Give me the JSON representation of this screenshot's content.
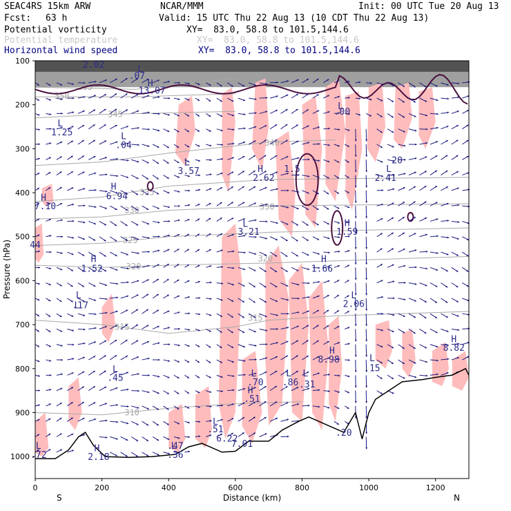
{
  "header": {
    "model": "SEAC4RS 15km ARW",
    "org": "NCAR/MMM",
    "init": "Init: 00 UTC Tue 20 Aug 13",
    "fcst_label": "Fcst:",
    "fcst_value": "63 h",
    "valid": "Valid: 15 UTC Thu 22 Aug 13 (10 CDT Thu 22 Aug 13)"
  },
  "fields": [
    {
      "name": "Potential vorticity",
      "xy": "XY=  83.0, 58.8 to 101.5,144.6",
      "color": "#000000"
    },
    {
      "name": "Potential temperature",
      "xy": "XY=  83.0, 58.8 to 101.5,144.6",
      "color": "#c8c8c8"
    },
    {
      "name": "Horizontal wind speed",
      "xy": "XY=  83.0, 58.8 to 101.5,144.6",
      "color": "#000080"
    }
  ],
  "colors": {
    "theta": "#a8a8a8",
    "pv_fill": "#ffbcbc",
    "pv_contour": "#4a0f3f",
    "wind": "#1a1a80",
    "label": "#2a2a8a",
    "terrain": "#000000",
    "strat_fill": "#505050"
  },
  "chart_data": {
    "type": "cross-section",
    "xlabel": "Distance (km)",
    "ylabel": "Pressure (hPa)",
    "xlim": [
      0,
      1300
    ],
    "ylim": [
      1050,
      100
    ],
    "x_ticks": [
      "0",
      "200",
      "400",
      "600",
      "800",
      "1000",
      "1200"
    ],
    "y_ticks": [
      "100",
      "200",
      "300",
      "400",
      "500",
      "600",
      "700",
      "800",
      "900",
      "1000"
    ],
    "end_labels": {
      "left": "S",
      "right": "N"
    },
    "theta_contours": [
      {
        "label": "355",
        "values": [
          [
            0,
            160
          ],
          [
            300,
            165
          ],
          [
            600,
            140
          ]
        ]
      },
      {
        "label": "350",
        "values": [
          [
            0,
            182
          ],
          [
            300,
            182
          ],
          [
            600,
            175
          ]
        ]
      },
      {
        "label": "345",
        "values": [
          [
            0,
            230
          ],
          [
            200,
            222
          ],
          [
            600,
            215
          ]
        ]
      },
      {
        "label": "340",
        "values": [
          [
            0,
            338
          ],
          [
            200,
            330
          ],
          [
            400,
            310
          ],
          [
            700,
            285
          ],
          [
            900,
            280
          ]
        ]
      },
      {
        "label": "335",
        "values": [
          [
            0,
            420
          ],
          [
            200,
            410
          ],
          [
            400,
            385
          ],
          [
            700,
            370
          ],
          [
            1300,
            365
          ]
        ]
      },
      {
        "label": "330",
        "values": [
          [
            0,
            460
          ],
          [
            200,
            455
          ],
          [
            400,
            440
          ],
          [
            700,
            430
          ],
          [
            1300,
            425
          ]
        ]
      },
      {
        "label": "325",
        "values": [
          [
            0,
            520
          ],
          [
            200,
            515
          ],
          [
            400,
            500
          ],
          [
            700,
            490
          ],
          [
            1300,
            480
          ]
        ]
      },
      {
        "label": "320",
        "values": [
          [
            0,
            565
          ],
          [
            200,
            570
          ],
          [
            400,
            565
          ],
          [
            700,
            560
          ],
          [
            1300,
            545
          ]
        ]
      },
      {
        "label": "315",
        "values": [
          [
            0,
            690
          ],
          [
            200,
            700
          ],
          [
            400,
            720
          ],
          [
            600,
            705
          ],
          [
            700,
            690
          ],
          [
            900,
            680
          ],
          [
            1300,
            670
          ]
        ]
      },
      {
        "label": "310",
        "values": [
          [
            0,
            900
          ],
          [
            200,
            905
          ],
          [
            400,
            890
          ],
          [
            600,
            880
          ],
          [
            800,
            875
          ]
        ]
      }
    ],
    "theta_labels": [
      {
        "text": "355",
        "x": 150,
        "p": 160
      },
      {
        "text": "350",
        "x": 80,
        "p": 180
      },
      {
        "text": "345",
        "x": 240,
        "p": 222
      },
      {
        "text": "340",
        "x": 710,
        "p": 287
      },
      {
        "text": "335",
        "x": 335,
        "p": 399
      },
      {
        "text": "330",
        "x": 290,
        "p": 440
      },
      {
        "text": "330",
        "x": 695,
        "p": 432
      },
      {
        "text": "325",
        "x": 285,
        "p": 508
      },
      {
        "text": "320",
        "x": 295,
        "p": 568
      },
      {
        "text": "320",
        "x": 690,
        "p": 550
      },
      {
        "text": "315",
        "x": 260,
        "p": 705
      },
      {
        "text": "315",
        "x": 660,
        "p": 685
      },
      {
        "text": "310",
        "x": 290,
        "p": 900
      }
    ],
    "extrema_labels": [
      {
        "text": "2.02",
        "x": 175,
        "p": 108
      },
      {
        "text": "L",
        "x": 315,
        "p": 118
      },
      {
        "text": ".07",
        "x": 305,
        "p": 133
      },
      {
        "text": "H",
        "x": 345,
        "p": 150
      },
      {
        "text": "13.07",
        "x": 350,
        "p": 167
      },
      {
        "text": "L",
        "x": 75,
        "p": 241
      },
      {
        "text": "1.25",
        "x": 80,
        "p": 262
      },
      {
        "text": "L",
        "x": 265,
        "p": 270
      },
      {
        "text": ".04",
        "x": 265,
        "p": 291
      },
      {
        "text": "L",
        "x": 455,
        "p": 330
      },
      {
        "text": "3.57",
        "x": 460,
        "p": 350
      },
      {
        "text": "H",
        "x": 675,
        "p": 345
      },
      {
        "text": "2.62",
        "x": 685,
        "p": 365
      },
      {
        "text": "1.5",
        "x": 770,
        "p": 345
      },
      {
        "text": "L",
        "x": 1060,
        "p": 345
      },
      {
        "text": "2.41",
        "x": 1050,
        "p": 365
      },
      {
        "text": "20",
        "x": 1085,
        "p": 325
      },
      {
        "text": "H",
        "x": 235,
        "p": 385
      },
      {
        "text": "6.94",
        "x": 245,
        "p": 407
      },
      {
        "text": "H",
        "x": 25,
        "p": 410
      },
      {
        "text": "7.10",
        "x": 30,
        "p": 430
      },
      {
        "text": "L",
        "x": 630,
        "p": 470
      },
      {
        "text": "3.21",
        "x": 640,
        "p": 488
      },
      {
        "text": "H",
        "x": 935,
        "p": 468
      },
      {
        "text": "1.59",
        "x": 935,
        "p": 488
      },
      {
        "text": "44",
        "x": 0,
        "p": 518
      },
      {
        "text": "H",
        "x": 175,
        "p": 550
      },
      {
        "text": "1.52",
        "x": 170,
        "p": 572
      },
      {
        "text": "H",
        "x": 865,
        "p": 550
      },
      {
        "text": "1.66",
        "x": 860,
        "p": 572
      },
      {
        "text": "L",
        "x": 130,
        "p": 632
      },
      {
        "text": "L",
        "x": 125,
        "p": 655
      },
      {
        "text": ".17",
        "x": 135,
        "p": 655
      },
      {
        "text": "L",
        "x": 955,
        "p": 632
      },
      {
        "text": "2.06",
        "x": 955,
        "p": 652
      },
      {
        "text": "H",
        "x": 890,
        "p": 758
      },
      {
        "text": "8.98",
        "x": 880,
        "p": 778
      },
      {
        "text": "H",
        "x": 1255,
        "p": 732
      },
      {
        "text": "8.82",
        "x": 1255,
        "p": 752
      },
      {
        "text": "L",
        "x": 1010,
        "p": 775
      },
      {
        "text": ".15",
        "x": 1010,
        "p": 798
      },
      {
        "text": "L",
        "x": 240,
        "p": 800
      },
      {
        "text": ".45",
        "x": 240,
        "p": 820
      },
      {
        "text": "L",
        "x": 655,
        "p": 810
      },
      {
        "text": ".70",
        "x": 660,
        "p": 830
      },
      {
        "text": "H",
        "x": 645,
        "p": 848
      },
      {
        "text": ".51",
        "x": 650,
        "p": 868
      },
      {
        "text": "L",
        "x": 760,
        "p": 810
      },
      {
        "text": ".86",
        "x": 765,
        "p": 830
      },
      {
        "text": "L",
        "x": 810,
        "p": 810
      },
      {
        "text": ".31",
        "x": 815,
        "p": 835
      },
      {
        "text": "L",
        "x": 540,
        "p": 920
      },
      {
        "text": ".51",
        "x": 540,
        "p": 937
      },
      {
        "text": "6.22",
        "x": 575,
        "p": 958
      },
      {
        "text": "7.01",
        "x": 620,
        "p": 970
      },
      {
        "text": ".20",
        "x": 925,
        "p": 945
      },
      {
        "text": "L",
        "x": 10,
        "p": 975
      },
      {
        "text": ".72",
        "x": 10,
        "p": 995
      },
      {
        "text": "H",
        "x": 185,
        "p": 980
      },
      {
        "text": "2.18",
        "x": 190,
        "p": 1000
      },
      {
        "text": "L",
        "x": 415,
        "p": 975
      },
      {
        "text": ".47",
        "x": 420,
        "p": 975
      },
      {
        "text": ".36",
        "x": 420,
        "p": 995
      },
      {
        "text": "L",
        "x": 915,
        "p": 202
      },
      {
        "text": ".00",
        "x": 920,
        "p": 215
      }
    ],
    "terrain": [
      [
        0,
        1005
      ],
      [
        60,
        1005
      ],
      [
        100,
        985
      ],
      [
        130,
        955
      ],
      [
        150,
        945
      ],
      [
        175,
        975
      ],
      [
        210,
        1000
      ],
      [
        280,
        1002
      ],
      [
        350,
        1000
      ],
      [
        420,
        995
      ],
      [
        460,
        978
      ],
      [
        500,
        970
      ],
      [
        560,
        990
      ],
      [
        600,
        988
      ],
      [
        640,
        965
      ],
      [
        700,
        965
      ],
      [
        740,
        940
      ],
      [
        790,
        920
      ],
      [
        820,
        910
      ],
      [
        880,
        930
      ],
      [
        925,
        945
      ],
      [
        960,
        900
      ],
      [
        980,
        960
      ],
      [
        1000,
        900
      ],
      [
        1020,
        870
      ],
      [
        1060,
        850
      ],
      [
        1100,
        830
      ],
      [
        1160,
        825
      ],
      [
        1200,
        820
      ],
      [
        1250,
        815
      ],
      [
        1290,
        800
      ],
      [
        1300,
        815
      ]
    ]
  }
}
